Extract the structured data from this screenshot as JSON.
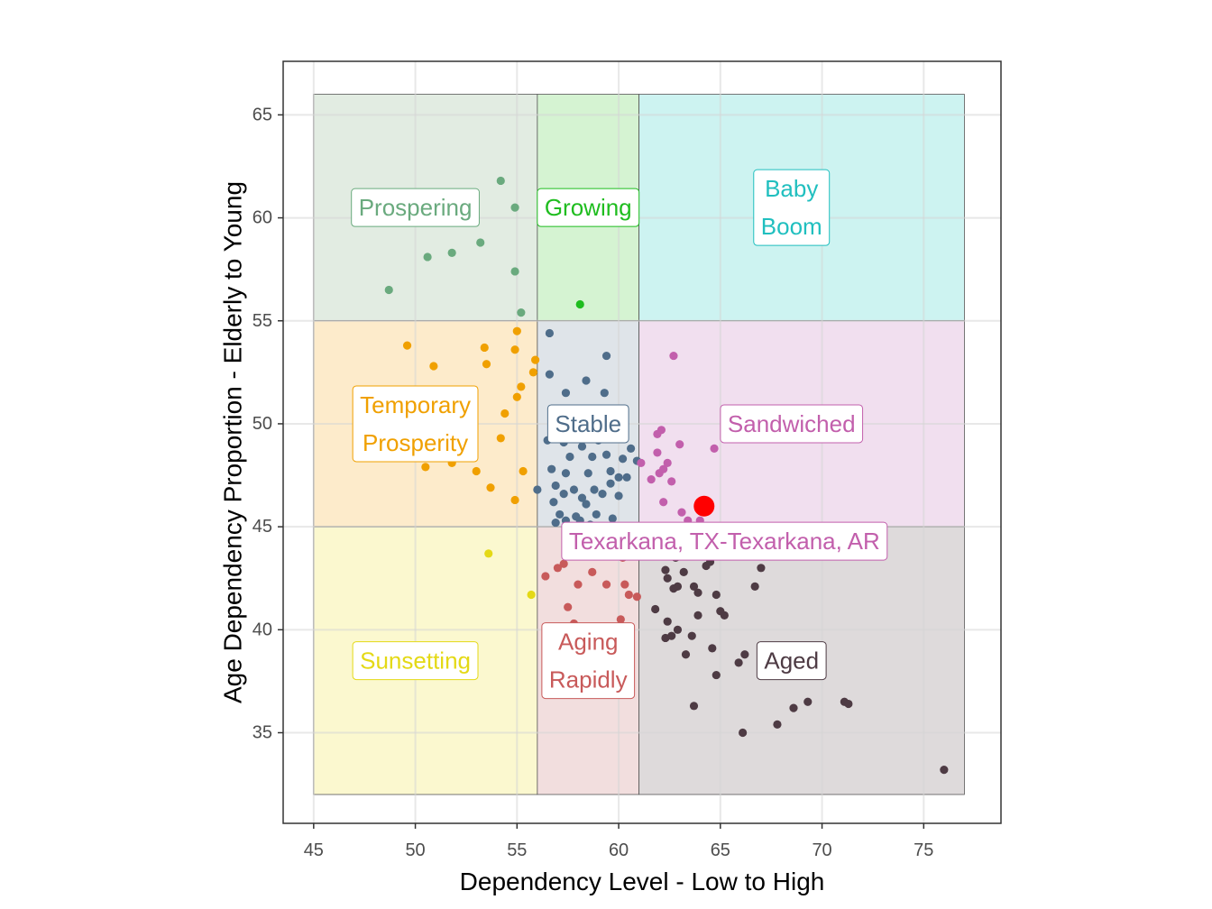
{
  "chart_data": {
    "type": "scatter",
    "xlabel": "Dependency Level - Low to High",
    "ylabel": "Age Dependency Proportion - Elderly to Young",
    "xlim": [
      43.5,
      78.8
    ],
    "ylim": [
      30.6,
      67.6
    ],
    "x_ticks": [
      "45",
      "50",
      "55",
      "60",
      "65",
      "70",
      "75"
    ],
    "y_ticks": [
      "35",
      "40",
      "45",
      "50",
      "55",
      "60",
      "65"
    ],
    "grid": true,
    "regions": [
      {
        "name": "Prospering",
        "label_lines": [
          "Prospering"
        ],
        "x": [
          45,
          56
        ],
        "y": [
          55,
          66
        ],
        "fill": "#e2ece2",
        "color": "#6aaa7e",
        "label_at": [
          50,
          60.5
        ]
      },
      {
        "name": "Growing",
        "label_lines": [
          "Growing"
        ],
        "x": [
          56,
          61
        ],
        "y": [
          55,
          66
        ],
        "fill": "#d5f3d2",
        "color": "#1fbd1f",
        "label_at": [
          58.5,
          60.5
        ]
      },
      {
        "name": "Baby Boom",
        "label_lines": [
          "Baby",
          "Boom"
        ],
        "x": [
          61,
          77
        ],
        "y": [
          55,
          66
        ],
        "fill": "#cdf3f1",
        "color": "#20bfbf",
        "label_at": [
          68.5,
          60.5
        ]
      },
      {
        "name": "Temporary Prosperity",
        "label_lines": [
          "Temporary",
          "Prosperity"
        ],
        "x": [
          45,
          56
        ],
        "y": [
          45,
          55
        ],
        "fill": "#fdebcb",
        "color": "#f0a000",
        "label_at": [
          50,
          50
        ]
      },
      {
        "name": "Stable",
        "label_lines": [
          "Stable"
        ],
        "x": [
          56,
          61
        ],
        "y": [
          45,
          55
        ],
        "fill": "#dfe4e9",
        "color": "#4f6d8a",
        "label_at": [
          58.5,
          50
        ]
      },
      {
        "name": "Sandwiched",
        "label_lines": [
          "Sandwiched"
        ],
        "x": [
          61,
          77
        ],
        "y": [
          45,
          55
        ],
        "fill": "#f1dfef",
        "color": "#c25fac",
        "label_at": [
          68.5,
          50
        ]
      },
      {
        "name": "Sunsetting",
        "label_lines": [
          "Sunsetting"
        ],
        "x": [
          45,
          56
        ],
        "y": [
          32,
          45
        ],
        "fill": "#fbf8cf",
        "color": "#e4d916",
        "label_at": [
          50,
          38.5
        ]
      },
      {
        "name": "Aging Rapidly",
        "label_lines": [
          "Aging",
          "Rapidly"
        ],
        "x": [
          56,
          61
        ],
        "y": [
          32,
          45
        ],
        "fill": "#f2dede",
        "color": "#c85a5a",
        "label_at": [
          58.5,
          38.5
        ]
      },
      {
        "name": "Aged",
        "label_lines": [
          "Aged"
        ],
        "x": [
          61,
          77
        ],
        "y": [
          32,
          45
        ],
        "fill": "#dedadb",
        "color": "#4e3b44",
        "label_at": [
          68.5,
          38.5
        ]
      }
    ],
    "highlight": {
      "label": "Texarkana, TX-Texarkana, AR",
      "x": 64.2,
      "y": 46.0,
      "color": "#ff0000",
      "label_color": "#c25fac",
      "label_at": [
        65.2,
        44.3
      ]
    },
    "series": [
      {
        "name": "Prospering",
        "color": "#6aaa7e",
        "points": [
          [
            54.2,
            61.8
          ],
          [
            54.9,
            60.5
          ],
          [
            53.2,
            58.8
          ],
          [
            51.8,
            58.3
          ],
          [
            50.6,
            58.1
          ],
          [
            54.9,
            57.4
          ],
          [
            48.7,
            56.5
          ],
          [
            55.2,
            55.4
          ]
        ]
      },
      {
        "name": "Growing",
        "color": "#1fbd1f",
        "points": [
          [
            58.1,
            55.8
          ]
        ]
      },
      {
        "name": "Temporary Prosperity",
        "color": "#f0a000",
        "points": [
          [
            55.0,
            54.5
          ],
          [
            49.6,
            53.8
          ],
          [
            53.4,
            53.7
          ],
          [
            54.9,
            53.6
          ],
          [
            55.9,
            53.1
          ],
          [
            53.5,
            52.9
          ],
          [
            50.9,
            52.8
          ],
          [
            55.8,
            52.5
          ],
          [
            55.2,
            51.8
          ],
          [
            55.0,
            51.3
          ],
          [
            54.4,
            50.5
          ],
          [
            54.2,
            49.3
          ],
          [
            51.8,
            48.1
          ],
          [
            50.5,
            47.9
          ],
          [
            53.0,
            47.7
          ],
          [
            55.3,
            47.7
          ],
          [
            53.7,
            46.9
          ],
          [
            54.9,
            46.3
          ],
          [
            50.6,
            49.0
          ],
          [
            52.2,
            49.8
          ]
        ]
      },
      {
        "name": "Stable",
        "color": "#4f6d8a",
        "points": [
          [
            56.6,
            54.4
          ],
          [
            59.4,
            53.3
          ],
          [
            58.4,
            52.1
          ],
          [
            57.4,
            51.5
          ],
          [
            56.6,
            52.4
          ],
          [
            59.3,
            51.5
          ],
          [
            57.0,
            50.4
          ],
          [
            58.0,
            49.8
          ],
          [
            59.0,
            49.7
          ],
          [
            60.0,
            49.5
          ],
          [
            56.5,
            49.2
          ],
          [
            57.3,
            49.1
          ],
          [
            58.2,
            48.9
          ],
          [
            59.0,
            49.2
          ],
          [
            60.6,
            48.8
          ],
          [
            57.6,
            48.4
          ],
          [
            58.7,
            48.4
          ],
          [
            59.4,
            48.5
          ],
          [
            60.2,
            48.3
          ],
          [
            60.9,
            48.2
          ],
          [
            56.7,
            47.8
          ],
          [
            57.4,
            47.6
          ],
          [
            58.5,
            47.6
          ],
          [
            59.6,
            47.7
          ],
          [
            60.4,
            47.4
          ],
          [
            60.0,
            47.4
          ],
          [
            56.0,
            46.8
          ],
          [
            56.9,
            47.0
          ],
          [
            57.3,
            46.6
          ],
          [
            57.8,
            46.8
          ],
          [
            58.2,
            46.4
          ],
          [
            58.8,
            46.8
          ],
          [
            59.2,
            46.6
          ],
          [
            59.6,
            47.1
          ],
          [
            60.0,
            46.5
          ],
          [
            56.8,
            46.2
          ],
          [
            58.4,
            46.1
          ],
          [
            57.1,
            45.6
          ],
          [
            57.9,
            45.5
          ],
          [
            58.9,
            45.6
          ],
          [
            59.7,
            45.4
          ],
          [
            57.4,
            45.3
          ],
          [
            56.9,
            45.2
          ],
          [
            58.1,
            45.3
          ],
          [
            58.6,
            45.1
          ]
        ]
      },
      {
        "name": "Sandwiched",
        "color": "#c25fac",
        "points": [
          [
            62.7,
            53.3
          ],
          [
            64.7,
            48.8
          ],
          [
            62.1,
            49.7
          ],
          [
            61.9,
            49.5
          ],
          [
            63.0,
            49.0
          ],
          [
            61.9,
            48.6
          ],
          [
            62.4,
            48.1
          ],
          [
            61.6,
            47.3
          ],
          [
            62.0,
            47.6
          ],
          [
            62.2,
            47.8
          ],
          [
            62.6,
            47.2
          ],
          [
            62.2,
            46.2
          ],
          [
            63.1,
            45.7
          ],
          [
            63.4,
            45.3
          ],
          [
            64.0,
            45.3
          ],
          [
            62.8,
            45.0
          ],
          [
            61.1,
            48.1
          ]
        ]
      },
      {
        "name": "Sunsetting",
        "color": "#e4d916",
        "points": [
          [
            55.7,
            41.7
          ],
          [
            53.6,
            43.7
          ]
        ]
      },
      {
        "name": "Aging Rapidly",
        "color": "#c85a5a",
        "points": [
          [
            56.4,
            42.6
          ],
          [
            58.0,
            42.2
          ],
          [
            59.4,
            42.2
          ],
          [
            60.3,
            42.2
          ],
          [
            60.5,
            41.7
          ],
          [
            60.9,
            41.6
          ],
          [
            57.5,
            41.1
          ],
          [
            58.7,
            42.8
          ],
          [
            57.0,
            43.0
          ],
          [
            60.2,
            43.5
          ],
          [
            57.3,
            43.2
          ],
          [
            57.8,
            40.3
          ],
          [
            60.1,
            40.5
          ]
        ]
      },
      {
        "name": "Aged",
        "color": "#4e3b44",
        "points": [
          [
            64.3,
            43.1
          ],
          [
            67.0,
            43.0
          ],
          [
            62.3,
            42.9
          ],
          [
            63.2,
            42.8
          ],
          [
            62.4,
            42.5
          ],
          [
            63.7,
            42.1
          ],
          [
            62.7,
            42.0
          ],
          [
            62.9,
            42.1
          ],
          [
            66.7,
            42.1
          ],
          [
            63.9,
            41.8
          ],
          [
            64.8,
            41.7
          ],
          [
            61.8,
            41.0
          ],
          [
            65.0,
            40.9
          ],
          [
            65.2,
            40.7
          ],
          [
            63.9,
            40.7
          ],
          [
            62.4,
            40.4
          ],
          [
            62.9,
            40.0
          ],
          [
            63.6,
            39.7
          ],
          [
            62.3,
            39.6
          ],
          [
            62.6,
            39.7
          ],
          [
            64.6,
            39.1
          ],
          [
            66.2,
            38.8
          ],
          [
            63.3,
            38.8
          ],
          [
            65.9,
            38.4
          ],
          [
            64.8,
            37.8
          ],
          [
            69.3,
            36.5
          ],
          [
            68.6,
            36.2
          ],
          [
            71.1,
            36.5
          ],
          [
            71.3,
            36.4
          ],
          [
            63.7,
            36.3
          ],
          [
            67.8,
            35.4
          ],
          [
            66.1,
            35.0
          ],
          [
            76.0,
            33.2
          ],
          [
            62.8,
            43.5
          ],
          [
            64.5,
            43.3
          ]
        ]
      }
    ]
  }
}
